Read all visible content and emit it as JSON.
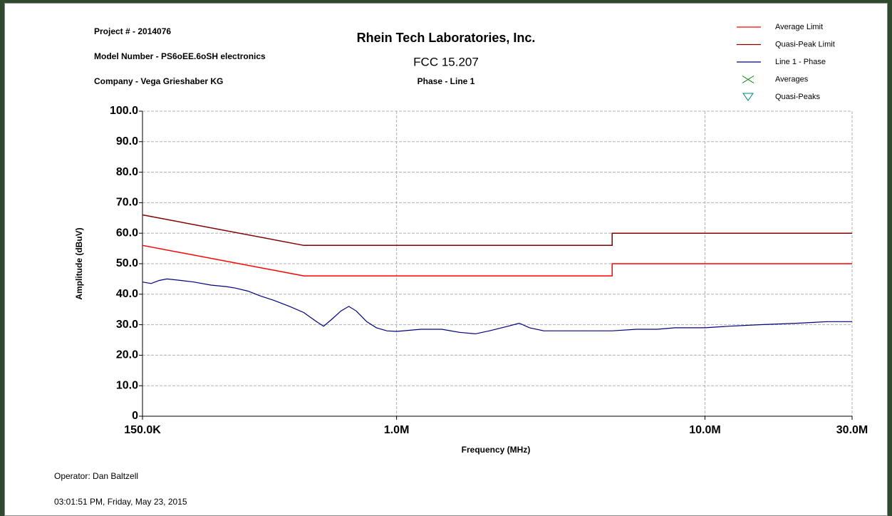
{
  "header": {
    "project": "Project # - 2014076",
    "model": "Model Number - PS6oEE.6oSH electronics",
    "company": "Company - Vega Grieshaber KG"
  },
  "footer": {
    "operator": "Operator: Dan Baltzell",
    "timestamp": "03:01:51 PM, Friday, May 23, 2015"
  },
  "chart_data": {
    "type": "line",
    "title": "Rhein Tech Laboratories, Inc.",
    "subtitle": "FCC 15.207",
    "subtitle2": "Phase - Line 1",
    "x_label": "Frequency (MHz)",
    "y_label": "Amplitude (dBuV)",
    "x_scale": "log",
    "grid": true,
    "legend": "top-right",
    "xlim": [
      0.15,
      30
    ],
    "ylim": [
      0,
      100
    ],
    "xticks": [
      {
        "value": 0.15,
        "label": "150.0K"
      },
      {
        "value": 1,
        "label": "1.0M"
      },
      {
        "value": 10,
        "label": "10.0M"
      },
      {
        "value": 30,
        "label": "30.0M"
      }
    ],
    "yticks": [
      0,
      {
        "value": 10,
        "label": "10.0"
      },
      {
        "value": 20,
        "label": "20.0"
      },
      {
        "value": 30,
        "label": "30.0"
      },
      {
        "value": 40,
        "label": "40.0"
      },
      {
        "value": 50,
        "label": "50.0"
      },
      {
        "value": 60,
        "label": "60.0"
      },
      {
        "value": 70,
        "label": "70.0"
      },
      {
        "value": 80,
        "label": "80.0"
      },
      {
        "value": 90,
        "label": "90.0"
      },
      {
        "value": 100,
        "label": "100.0"
      }
    ],
    "series": [
      {
        "name": "Average Limit",
        "color": "#ff0000",
        "x": [
          0.15,
          0.5,
          5,
          5,
          30
        ],
        "values": [
          56,
          46,
          46,
          50,
          50
        ]
      },
      {
        "name": "Quasi-Peak Limit",
        "color": "#800000",
        "x": [
          0.15,
          0.5,
          5,
          5,
          30
        ],
        "values": [
          66,
          56,
          56,
          60,
          60
        ]
      },
      {
        "name": "Line 1 - Phase",
        "color": "#000080",
        "x": [
          0.15,
          0.16,
          0.17,
          0.18,
          0.2,
          0.22,
          0.25,
          0.28,
          0.3,
          0.33,
          0.36,
          0.4,
          0.45,
          0.5,
          0.55,
          0.58,
          0.62,
          0.66,
          0.7,
          0.74,
          0.8,
          0.86,
          0.93,
          1.0,
          1.2,
          1.4,
          1.6,
          1.8,
          2.0,
          2.3,
          2.5,
          2.7,
          3.0,
          3.5,
          4,
          5,
          6,
          7,
          8,
          10,
          12,
          15,
          20,
          25,
          30
        ],
        "values": [
          44,
          43.5,
          44.5,
          45,
          44.5,
          44,
          43,
          42.5,
          42,
          41,
          39.5,
          38,
          36,
          34,
          31,
          29.5,
          32,
          34.5,
          36,
          34.5,
          31,
          29,
          28,
          27.8,
          28.5,
          28.5,
          27.5,
          27,
          28,
          29.5,
          30.5,
          29,
          28,
          28,
          28,
          28,
          28.5,
          28.5,
          29,
          29,
          29.5,
          30,
          30.5,
          31,
          31
        ]
      },
      {
        "name": "Averages",
        "color": "#008000",
        "marker": "x",
        "x": [],
        "values": []
      },
      {
        "name": "Quasi-Peaks",
        "color": "#008080",
        "marker": "triangle-down",
        "x": [],
        "values": []
      }
    ]
  }
}
